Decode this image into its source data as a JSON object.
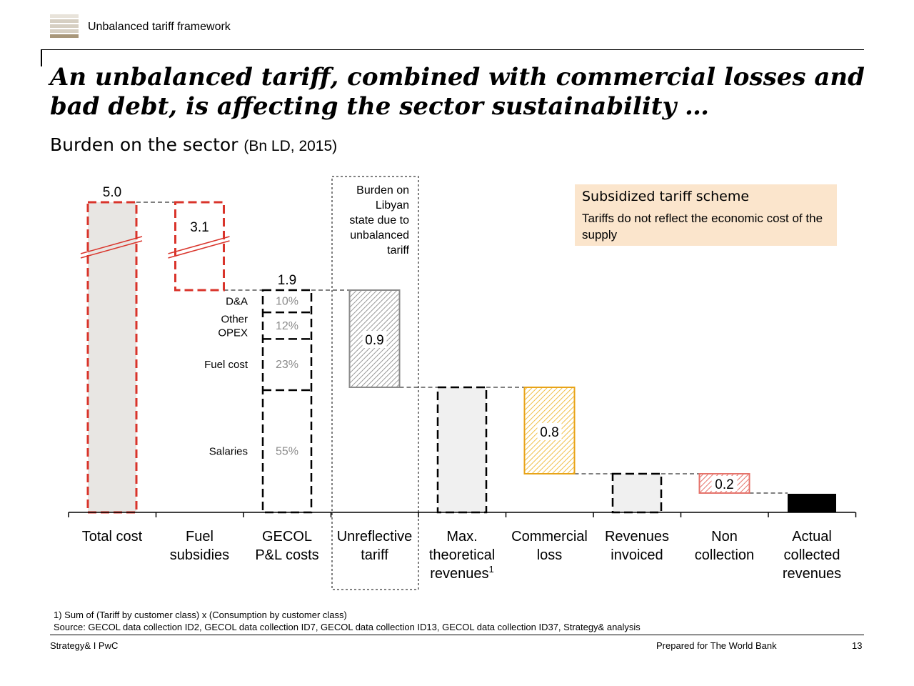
{
  "header": {
    "section_label": "Unbalanced tariff framework",
    "title": "An unbalanced tariff, combined with commercial losses and bad debt, is affecting the sector sustainability …",
    "subtitle": "Burden on the sector",
    "subtitle_unit": "(Bn LD, 2015)"
  },
  "chart_data": {
    "type": "bar",
    "subtype": "waterfall",
    "unit": "Bn LD",
    "categories": [
      "Total cost",
      "Fuel subsidies",
      "GECOL P&L costs",
      "Unreflective tariff",
      "Max. theoretical revenues¹",
      "Commercial loss",
      "Revenues invoiced",
      "Non collection",
      "Actual collected revenues"
    ],
    "category_lines": [
      [
        "Total cost"
      ],
      [
        "Fuel",
        "subsidies"
      ],
      [
        "GECOL",
        "P&L costs"
      ],
      [
        "Unreflective",
        "tariff"
      ],
      [
        "Max.",
        "theoretical",
        "revenues¹"
      ],
      [
        "Commercial",
        "loss"
      ],
      [
        "Revenues",
        "invoiced"
      ],
      [
        "Non",
        "collection"
      ],
      [
        "Actual",
        "collected",
        "revenues"
      ]
    ],
    "bars": [
      {
        "category": "Total cost",
        "kind": "total",
        "value": 5.0,
        "label": "5.0",
        "style": "red-dashed-grey",
        "axis_break": true
      },
      {
        "category": "Fuel subsidies",
        "kind": "decrease",
        "value": 3.1,
        "label": "3.1",
        "style": "red-dashed",
        "axis_break": true
      },
      {
        "category": "GECOL P&L costs",
        "kind": "total",
        "value": 1.9,
        "label": "1.9",
        "style": "black-dashed",
        "breakdown": [
          {
            "name": "D&A",
            "share": "10%"
          },
          {
            "name": "Other OPEX",
            "lines": [
              "Other",
              "OPEX"
            ],
            "share": "12%"
          },
          {
            "name": "Fuel cost",
            "share": "23%"
          },
          {
            "name": "Salaries",
            "share": "55%"
          }
        ]
      },
      {
        "category": "Unreflective tariff",
        "kind": "decrease",
        "value": 0.9,
        "label": "0.9",
        "style": "grey-hatched"
      },
      {
        "category": "Max. theoretical revenues¹",
        "kind": "total",
        "value": 1.0,
        "label": "",
        "style": "black-dashed-grey"
      },
      {
        "category": "Commercial loss",
        "kind": "decrease",
        "value": 0.8,
        "label": "0.8",
        "style": "orange-hatched"
      },
      {
        "category": "Revenues invoiced",
        "kind": "total",
        "value": 0.2,
        "label": "",
        "style": "black-dashed-grey"
      },
      {
        "category": "Non collection",
        "kind": "decrease",
        "value": 0.2,
        "label": "0.2",
        "style": "red-hatched"
      },
      {
        "category": "Actual collected revenues",
        "kind": "total",
        "value": 0.1,
        "label": "",
        "style": "black"
      }
    ],
    "highlight_note": [
      "Burden on",
      "Libyan",
      "state due to",
      "unbalanced",
      "tariff"
    ]
  },
  "callout": {
    "title": "Subsidized tariff scheme",
    "text": "Tariffs do not reflect the economic cost of the supply"
  },
  "footnotes": {
    "note1": "1) Sum of (Tariff by customer class) x (Consumption by customer class)",
    "source": "Source: GECOL data collection ID2, GECOL data collection ID7, GECOL data collection ID13, GECOL data collection ID37, Strategy& analysis"
  },
  "footer": {
    "left": "Strategy& I PwC",
    "right": "Prepared for The World Bank",
    "page": "13"
  },
  "colors": {
    "red": "#d9342b",
    "orange": "#e8a317",
    "grey_fill": "#e8e6e3",
    "light_fill": "#f0f0f0",
    "hatch_grey": "#9a9a9a",
    "hatch_red": "#e5736b",
    "callout_bg": "#fbe5cc"
  }
}
